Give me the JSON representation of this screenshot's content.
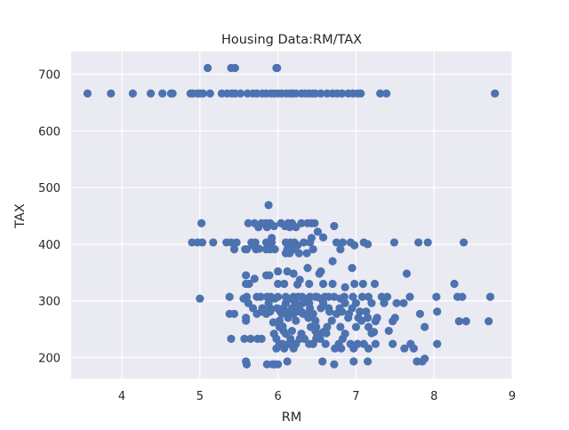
{
  "chart_data": {
    "type": "scatter",
    "title": "Housing Data:RM/TAX",
    "xlabel": "RM",
    "ylabel": "TAX",
    "xlim": [
      3.35,
      9.0
    ],
    "ylim": [
      163,
      740
    ],
    "x_ticks": [
      4,
      5,
      6,
      7,
      8,
      9
    ],
    "y_ticks": [
      200,
      300,
      400,
      500,
      600,
      700
    ],
    "grid": true,
    "background_color": "#eaeaf2",
    "grid_color": "#ffffff",
    "marker_color": "#4c72b0",
    "series": [
      {
        "points": [
          [
            5.1,
            711
          ],
          [
            5.4,
            711
          ],
          [
            5.45,
            711
          ],
          [
            5.98,
            711
          ],
          [
            5.99,
            711
          ],
          [
            3.56,
            666
          ],
          [
            3.86,
            666
          ],
          [
            4.14,
            666
          ],
          [
            4.37,
            666
          ],
          [
            4.52,
            666
          ],
          [
            4.63,
            666
          ],
          [
            4.65,
            666
          ],
          [
            4.88,
            666
          ],
          [
            4.91,
            666
          ],
          [
            4.97,
            666
          ],
          [
            5.0,
            666
          ],
          [
            5.04,
            666
          ],
          [
            5.13,
            666
          ],
          [
            5.28,
            666
          ],
          [
            5.35,
            666
          ],
          [
            5.41,
            666
          ],
          [
            5.45,
            666
          ],
          [
            5.52,
            666
          ],
          [
            5.61,
            666
          ],
          [
            5.68,
            666
          ],
          [
            5.73,
            666
          ],
          [
            5.8,
            666
          ],
          [
            5.85,
            666
          ],
          [
            5.91,
            666
          ],
          [
            5.95,
            666
          ],
          [
            6.0,
            666
          ],
          [
            6.05,
            666
          ],
          [
            6.11,
            666
          ],
          [
            6.16,
            666
          ],
          [
            6.19,
            666
          ],
          [
            6.23,
            666
          ],
          [
            6.3,
            666
          ],
          [
            6.35,
            666
          ],
          [
            6.4,
            666
          ],
          [
            6.45,
            666
          ],
          [
            6.48,
            666
          ],
          [
            6.55,
            666
          ],
          [
            6.63,
            666
          ],
          [
            6.7,
            666
          ],
          [
            6.76,
            666
          ],
          [
            6.82,
            666
          ],
          [
            6.9,
            666
          ],
          [
            6.96,
            666
          ],
          [
            7.02,
            666
          ],
          [
            7.06,
            666
          ],
          [
            7.31,
            666
          ],
          [
            7.39,
            666
          ],
          [
            8.78,
            666
          ],
          [
            5.88,
            469
          ],
          [
            5.02,
            437
          ],
          [
            5.62,
            437
          ],
          [
            5.7,
            437
          ],
          [
            5.79,
            437
          ],
          [
            5.85,
            437
          ],
          [
            5.9,
            437
          ],
          [
            6.04,
            437
          ],
          [
            6.13,
            437
          ],
          [
            6.18,
            437
          ],
          [
            6.3,
            437
          ],
          [
            6.38,
            437
          ],
          [
            6.43,
            437
          ],
          [
            6.47,
            437
          ],
          [
            5.95,
            432
          ],
          [
            6.09,
            432
          ],
          [
            6.72,
            432
          ],
          [
            5.75,
            430
          ],
          [
            5.86,
            430
          ],
          [
            6.23,
            430
          ],
          [
            6.15,
            430
          ],
          [
            6.51,
            422
          ],
          [
            6.58,
            412
          ],
          [
            6.43,
            411
          ],
          [
            5.92,
            411
          ],
          [
            4.9,
            403
          ],
          [
            4.97,
            403
          ],
          [
            5.03,
            403
          ],
          [
            5.17,
            403
          ],
          [
            5.34,
            403
          ],
          [
            5.4,
            403
          ],
          [
            5.47,
            403
          ],
          [
            5.66,
            403
          ],
          [
            5.71,
            403
          ],
          [
            5.85,
            403
          ],
          [
            5.92,
            403
          ],
          [
            6.1,
            403
          ],
          [
            6.16,
            403
          ],
          [
            6.21,
            403
          ],
          [
            6.33,
            403
          ],
          [
            6.41,
            403
          ],
          [
            6.75,
            403
          ],
          [
            6.83,
            403
          ],
          [
            6.93,
            403
          ],
          [
            7.1,
            403
          ],
          [
            7.49,
            403
          ],
          [
            7.8,
            403
          ],
          [
            7.92,
            403
          ],
          [
            8.38,
            403
          ],
          [
            6.98,
            398
          ],
          [
            7.15,
            400
          ],
          [
            5.68,
            398
          ],
          [
            6.25,
            398
          ],
          [
            5.44,
            391
          ],
          [
            5.58,
            391
          ],
          [
            5.6,
            391
          ],
          [
            5.72,
            391
          ],
          [
            5.85,
            391
          ],
          [
            5.9,
            391
          ],
          [
            5.96,
            391
          ],
          [
            6.12,
            391
          ],
          [
            6.2,
            391
          ],
          [
            6.45,
            391
          ],
          [
            6.8,
            391
          ],
          [
            5.76,
            392
          ],
          [
            6.15,
            384
          ],
          [
            6.1,
            384
          ],
          [
            6.37,
            384
          ],
          [
            6.27,
            384
          ],
          [
            6.7,
            370
          ],
          [
            6.95,
            358
          ],
          [
            6.38,
            358
          ],
          [
            7.65,
            348
          ],
          [
            6.2,
            348
          ],
          [
            6.53,
            348
          ],
          [
            5.59,
            345
          ],
          [
            5.85,
            345
          ],
          [
            5.89,
            345
          ],
          [
            6.0,
            352
          ],
          [
            6.12,
            352
          ],
          [
            6.55,
            352
          ],
          [
            5.7,
            339
          ],
          [
            6.28,
            337
          ],
          [
            5.59,
            330
          ],
          [
            5.63,
            330
          ],
          [
            6.0,
            330
          ],
          [
            6.08,
            330
          ],
          [
            6.25,
            329
          ],
          [
            6.4,
            330
          ],
          [
            6.58,
            330
          ],
          [
            6.98,
            330
          ],
          [
            7.09,
            330
          ],
          [
            7.24,
            330
          ],
          [
            8.26,
            330
          ],
          [
            6.7,
            330
          ],
          [
            6.86,
            324
          ],
          [
            5.38,
            307
          ],
          [
            5.6,
            307
          ],
          [
            5.73,
            307
          ],
          [
            5.78,
            307
          ],
          [
            5.86,
            307
          ],
          [
            5.91,
            307
          ],
          [
            6.0,
            307
          ],
          [
            6.1,
            307
          ],
          [
            6.2,
            307
          ],
          [
            6.26,
            307
          ],
          [
            6.31,
            307
          ],
          [
            6.41,
            307
          ],
          [
            6.48,
            307
          ],
          [
            6.5,
            307
          ],
          [
            6.6,
            307
          ],
          [
            6.65,
            307
          ],
          [
            6.72,
            307
          ],
          [
            6.85,
            307
          ],
          [
            7.08,
            307
          ],
          [
            7.33,
            307
          ],
          [
            7.4,
            307
          ],
          [
            7.69,
            307
          ],
          [
            8.03,
            307
          ],
          [
            8.3,
            307
          ],
          [
            8.36,
            307
          ],
          [
            8.72,
            307
          ],
          [
            6.96,
            307
          ],
          [
            7.16,
            307
          ],
          [
            5.0,
            304
          ],
          [
            5.56,
            304
          ],
          [
            5.96,
            304
          ],
          [
            6.17,
            304
          ],
          [
            6.34,
            304
          ],
          [
            6.55,
            304
          ],
          [
            6.8,
            304
          ],
          [
            5.62,
            296
          ],
          [
            5.88,
            296
          ],
          [
            6.1,
            296
          ],
          [
            6.22,
            296
          ],
          [
            6.32,
            296
          ],
          [
            6.4,
            296
          ],
          [
            6.58,
            296
          ],
          [
            6.86,
            296
          ],
          [
            7.0,
            296
          ],
          [
            7.2,
            296
          ],
          [
            7.36,
            296
          ],
          [
            7.52,
            296
          ],
          [
            7.61,
            296
          ],
          [
            5.68,
            287
          ],
          [
            5.8,
            287
          ],
          [
            5.9,
            287
          ],
          [
            5.99,
            287
          ],
          [
            6.07,
            287
          ],
          [
            6.18,
            287
          ],
          [
            6.27,
            287
          ],
          [
            6.41,
            287
          ],
          [
            6.55,
            287
          ],
          [
            6.65,
            287
          ],
          [
            6.79,
            287
          ],
          [
            6.95,
            287
          ],
          [
            5.79,
            281
          ],
          [
            5.9,
            281
          ],
          [
            6.03,
            281
          ],
          [
            6.11,
            281
          ],
          [
            6.24,
            281
          ],
          [
            6.3,
            281
          ],
          [
            6.4,
            281
          ],
          [
            6.66,
            281
          ],
          [
            6.82,
            281
          ],
          [
            7.05,
            281
          ],
          [
            7.13,
            281
          ],
          [
            8.04,
            281
          ],
          [
            5.38,
            277
          ],
          [
            5.44,
            277
          ],
          [
            5.73,
            277
          ],
          [
            5.85,
            277
          ],
          [
            6.05,
            277
          ],
          [
            6.2,
            277
          ],
          [
            6.32,
            277
          ],
          [
            6.45,
            277
          ],
          [
            6.75,
            277
          ],
          [
            6.91,
            277
          ],
          [
            7.82,
            277
          ],
          [
            5.59,
            270
          ],
          [
            6.13,
            270
          ],
          [
            6.39,
            270
          ],
          [
            6.9,
            270
          ],
          [
            7.03,
            270
          ],
          [
            7.15,
            270
          ],
          [
            7.27,
            270
          ],
          [
            7.5,
            270
          ],
          [
            5.59,
            265
          ],
          [
            6.02,
            265
          ],
          [
            6.23,
            265
          ],
          [
            6.48,
            265
          ],
          [
            6.69,
            265
          ],
          [
            7.07,
            265
          ],
          [
            7.25,
            264
          ],
          [
            7.47,
            264
          ],
          [
            8.32,
            264
          ],
          [
            8.41,
            264
          ],
          [
            8.7,
            264
          ],
          [
            5.94,
            262
          ],
          [
            6.06,
            255
          ],
          [
            6.02,
            254
          ],
          [
            6.42,
            254
          ],
          [
            6.49,
            254
          ],
          [
            6.63,
            254
          ],
          [
            6.8,
            254
          ],
          [
            7.0,
            254
          ],
          [
            7.16,
            254
          ],
          [
            7.88,
            254
          ],
          [
            6.07,
            247
          ],
          [
            6.18,
            247
          ],
          [
            6.48,
            247
          ],
          [
            6.58,
            245
          ],
          [
            7.42,
            247
          ],
          [
            6.62,
            243
          ],
          [
            7.2,
            243
          ],
          [
            7.23,
            245
          ],
          [
            5.95,
            242
          ],
          [
            6.1,
            242
          ],
          [
            6.3,
            242
          ],
          [
            6.5,
            242
          ],
          [
            6.86,
            242
          ],
          [
            5.74,
            233
          ],
          [
            5.79,
            233
          ],
          [
            5.4,
            233
          ],
          [
            5.57,
            233
          ],
          [
            5.65,
            233
          ],
          [
            5.98,
            233
          ],
          [
            6.16,
            233
          ],
          [
            6.28,
            233
          ],
          [
            6.34,
            233
          ],
          [
            6.49,
            233
          ],
          [
            6.54,
            233
          ],
          [
            6.83,
            233
          ],
          [
            6.02,
            224
          ],
          [
            6.06,
            224
          ],
          [
            6.14,
            224
          ],
          [
            6.23,
            224
          ],
          [
            6.4,
            224
          ],
          [
            6.45,
            224
          ],
          [
            6.61,
            224
          ],
          [
            6.78,
            224
          ],
          [
            6.93,
            224
          ],
          [
            7.02,
            224
          ],
          [
            7.1,
            224
          ],
          [
            7.25,
            224
          ],
          [
            7.47,
            224
          ],
          [
            7.7,
            224
          ],
          [
            8.04,
            224
          ],
          [
            5.98,
            216
          ],
          [
            6.08,
            216
          ],
          [
            6.2,
            216
          ],
          [
            6.73,
            216
          ],
          [
            6.81,
            216
          ],
          [
            6.97,
            216
          ],
          [
            7.16,
            216
          ],
          [
            7.62,
            216
          ],
          [
            7.74,
            216
          ],
          [
            7.88,
            198
          ],
          [
            6.12,
            193
          ],
          [
            6.57,
            193
          ],
          [
            6.97,
            193
          ],
          [
            7.15,
            193
          ],
          [
            7.78,
            193
          ],
          [
            7.85,
            193
          ],
          [
            5.59,
            193
          ],
          [
            5.6,
            188
          ],
          [
            5.86,
            188
          ],
          [
            5.93,
            188
          ],
          [
            6.0,
            188
          ],
          [
            6.72,
            188
          ],
          [
            5.95,
            188
          ]
        ]
      }
    ]
  }
}
